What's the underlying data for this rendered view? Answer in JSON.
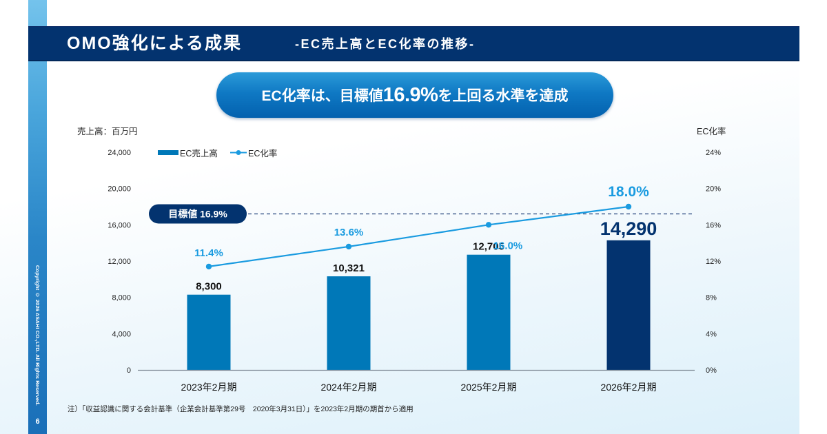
{
  "header": {
    "title": "OMO強化による成果",
    "subtitle": "-EC売上高とEC化率の推移-"
  },
  "callout": {
    "prefix": "EC化率は、目標値",
    "highlight": "16.9%",
    "suffix": "を上回る水準を達成"
  },
  "sidebar": {
    "copyright": "Copyright © 2026 ASAHI CO.,LTD. All Rights Reserved.",
    "page_number": "6"
  },
  "footnote": "注）「収益認識に関する会計基準（企業会計基準第29号　2020年3月31日）」を2023年2月期の期首から適用",
  "chart_data": {
    "type": "bar+line",
    "categories": [
      "2023年2月期",
      "2024年2月期",
      "2025年2月期",
      "2026年2月期"
    ],
    "series": [
      {
        "name": "EC売上高",
        "type": "bar",
        "axis": "left",
        "values": [
          8300,
          10321,
          12705,
          14290
        ],
        "labels": [
          "8,300",
          "10,321",
          "12,705",
          "14,290"
        ],
        "colors": [
          "#0078b8",
          "#0078b8",
          "#0078b8",
          "#03336f"
        ]
      },
      {
        "name": "EC化率",
        "type": "line",
        "axis": "right",
        "values": [
          11.4,
          13.6,
          16.0,
          18.0
        ],
        "labels": [
          "11.4%",
          "13.6%",
          "16.0%",
          "18.0%"
        ],
        "color": "#1a9be0"
      }
    ],
    "target": {
      "label": "目標値 16.9%",
      "value": 16.9,
      "axis": "right"
    },
    "yaxis_left": {
      "title": "売上高：百万円",
      "range": [
        0,
        24000
      ],
      "ticks": [
        "0",
        "4,000",
        "8,000",
        "12,000",
        "16,000",
        "20,000",
        "24,000"
      ],
      "tick_values": [
        0,
        4000,
        8000,
        12000,
        16000,
        20000,
        24000
      ]
    },
    "yaxis_right": {
      "title": "EC化率",
      "range": [
        0,
        24
      ],
      "ticks": [
        "0%",
        "4%",
        "8%",
        "12%",
        "16%",
        "20%",
        "24%"
      ],
      "tick_values": [
        0,
        4,
        8,
        12,
        16,
        20,
        24
      ]
    },
    "legend": {
      "position": "top-left",
      "items": [
        "EC売上高",
        "EC化率"
      ]
    },
    "grid": false
  }
}
